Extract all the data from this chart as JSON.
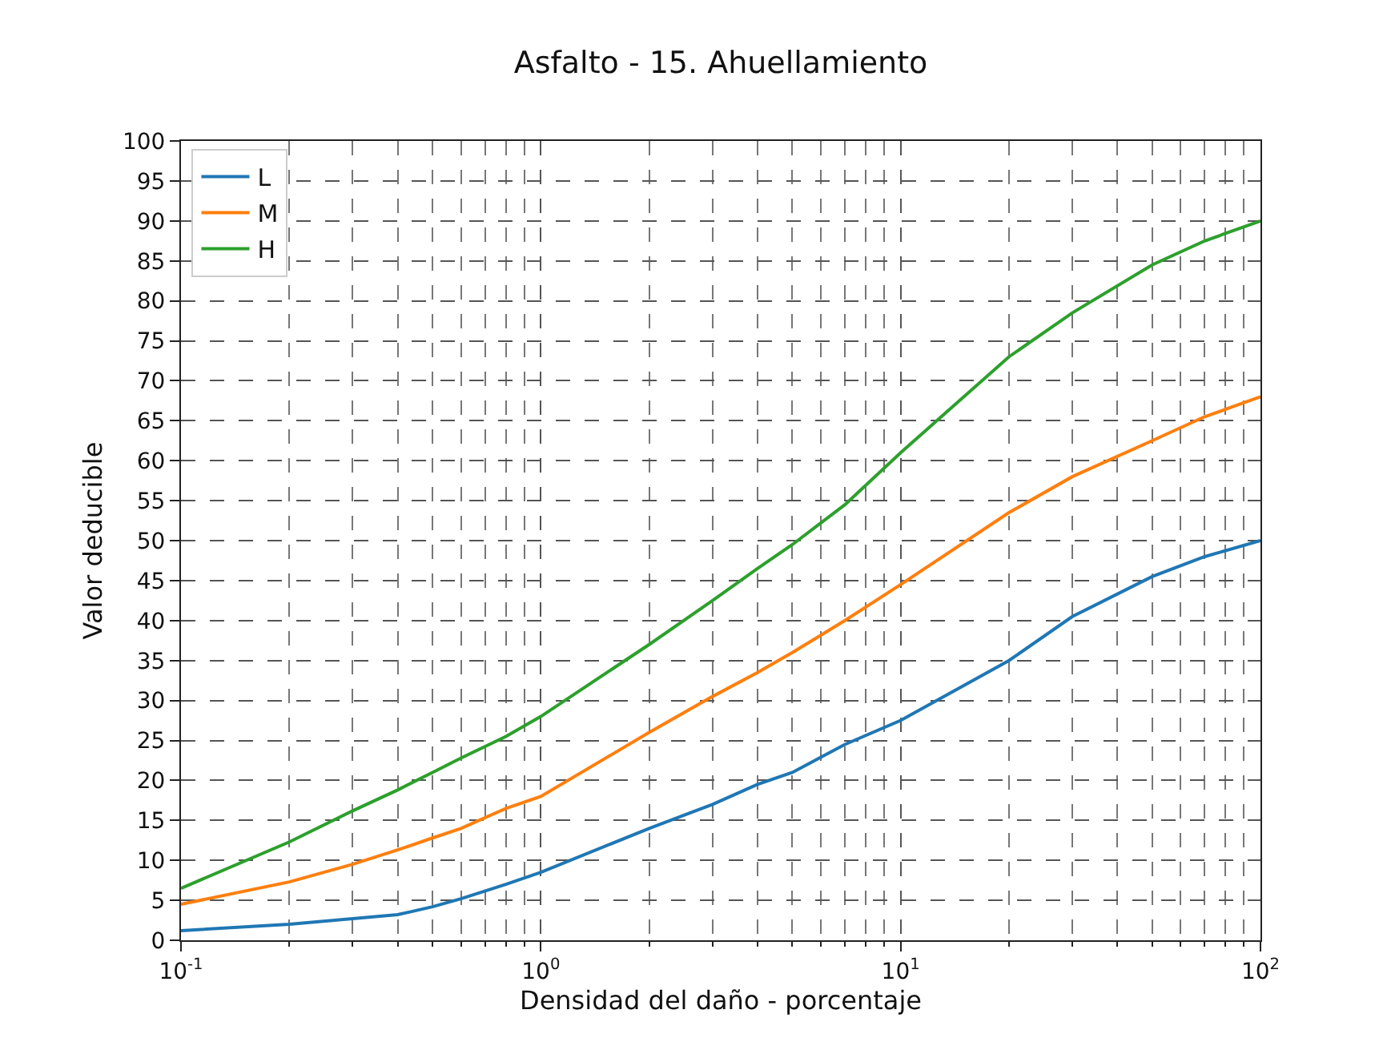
{
  "chart_data": {
    "type": "line",
    "title": "Asfalto - 15. Ahuellamiento",
    "xlabel": "Densidad del daño - porcentaje",
    "ylabel": "Valor deducible",
    "x": [
      0.1,
      0.2,
      0.3,
      0.4,
      0.5,
      0.6,
      0.8,
      1,
      2,
      3,
      4,
      5,
      7,
      10,
      20,
      30,
      50,
      70,
      100
    ],
    "series": [
      {
        "name": "L",
        "color": "#1f77b4",
        "values": [
          1.2,
          2,
          2.7,
          3.2,
          4.2,
          5.2,
          7,
          8.5,
          14,
          17,
          19.5,
          21,
          24.5,
          27.5,
          35,
          40.5,
          45.5,
          48,
          50
        ]
      },
      {
        "name": "M",
        "color": "#ff7f0e",
        "values": [
          4.5,
          7.3,
          9.5,
          11.3,
          12.8,
          14,
          16.5,
          18,
          26,
          30.5,
          33.5,
          36,
          40,
          44.5,
          53.5,
          58,
          62.5,
          65.5,
          68
        ]
      },
      {
        "name": "H",
        "color": "#2ca02c",
        "values": [
          6.5,
          12.3,
          16.2,
          18.8,
          21,
          22.8,
          25.5,
          28,
          37,
          42.5,
          46.5,
          49.5,
          54.5,
          61,
          73,
          78.5,
          84.5,
          87.5,
          90
        ]
      }
    ],
    "log": "x",
    "xlim": [
      0.1,
      100
    ],
    "xticks": [
      {
        "value": 0.1,
        "label": "10$^{-1}$"
      },
      {
        "value": 1,
        "label": "10$^{0}$"
      },
      {
        "value": 10,
        "label": "10$^{1}$"
      },
      {
        "value": 100,
        "label": "10$^{2}$"
      }
    ],
    "ylim": [
      0,
      100
    ],
    "yticks": [
      0,
      5,
      10,
      15,
      20,
      25,
      30,
      35,
      40,
      45,
      50,
      55,
      60,
      65,
      70,
      75,
      80,
      85,
      90,
      95,
      100
    ],
    "grid": true,
    "legend": "top left",
    "line_style": "solid",
    "marker": "none"
  }
}
